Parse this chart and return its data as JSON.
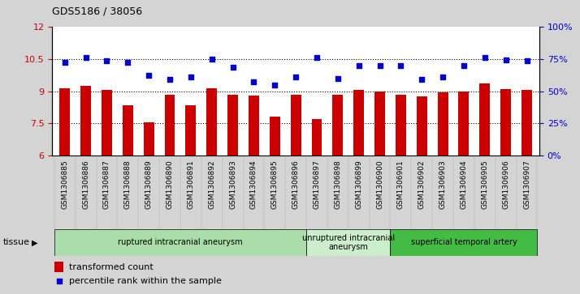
{
  "title": "GDS5186 / 38056",
  "samples": [
    "GSM1306885",
    "GSM1306886",
    "GSM1306887",
    "GSM1306888",
    "GSM1306889",
    "GSM1306890",
    "GSM1306891",
    "GSM1306892",
    "GSM1306893",
    "GSM1306894",
    "GSM1306895",
    "GSM1306896",
    "GSM1306897",
    "GSM1306898",
    "GSM1306899",
    "GSM1306900",
    "GSM1306901",
    "GSM1306902",
    "GSM1306903",
    "GSM1306904",
    "GSM1306905",
    "GSM1306906",
    "GSM1306907"
  ],
  "bar_values": [
    9.15,
    9.25,
    9.05,
    8.35,
    7.55,
    8.85,
    8.35,
    9.15,
    8.85,
    8.8,
    7.8,
    8.85,
    7.7,
    8.85,
    9.05,
    9.0,
    8.85,
    8.75,
    8.95,
    9.0,
    9.35,
    9.1,
    9.05
  ],
  "dot_values_left_scale": [
    10.35,
    10.55,
    10.4,
    10.35,
    9.75,
    9.55,
    9.65,
    10.5,
    10.1,
    9.45,
    9.3,
    9.65,
    10.55,
    9.6,
    10.2,
    10.2,
    10.2,
    9.55,
    9.65,
    10.2,
    10.55,
    10.45,
    10.4
  ],
  "ylim_left": [
    6,
    12
  ],
  "ylim_right": [
    0,
    100
  ],
  "yticks_left": [
    6,
    7.5,
    9,
    10.5,
    12
  ],
  "yticks_right": [
    0,
    25,
    50,
    75,
    100
  ],
  "bar_color": "#cc0000",
  "dot_color": "#0000cc",
  "bar_bottom": 6,
  "groups": [
    {
      "label": "ruptured intracranial aneurysm",
      "start": 0,
      "end": 12,
      "color": "#aaddaa"
    },
    {
      "label": "unruptured intracranial\naneurysm",
      "start": 12,
      "end": 16,
      "color": "#cceecc"
    },
    {
      "label": "superficial temporal artery",
      "start": 16,
      "end": 23,
      "color": "#44bb44"
    }
  ],
  "tissue_label": "tissue",
  "legend_bar_label": "transformed count",
  "legend_dot_label": "percentile rank within the sample",
  "bg_color": "#d4d4d4",
  "plot_bg_color": "#ffffff",
  "dotted_line_color": "#000000",
  "ylabel_left_color": "#cc0000",
  "ylabel_right_color": "#0000cc",
  "xtick_bg_color": "#cccccc"
}
